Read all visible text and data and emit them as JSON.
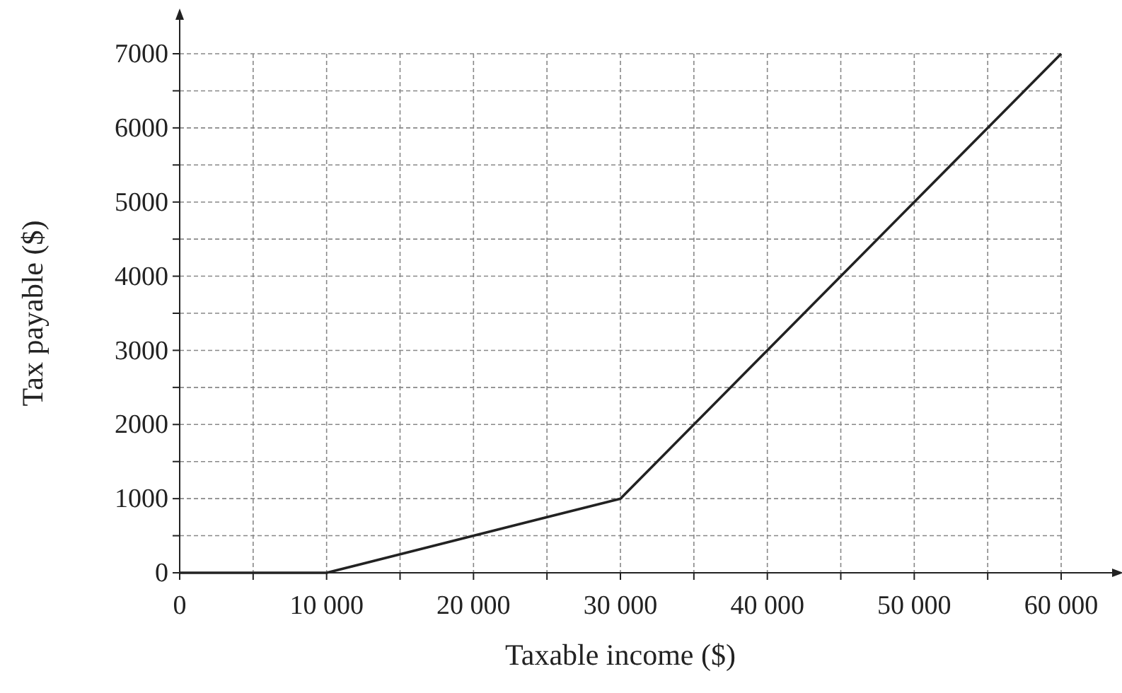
{
  "chart_data": {
    "type": "line",
    "xlabel": "Taxable income ($)",
    "ylabel": "Tax payable ($)",
    "x": [
      0,
      10000,
      30000,
      60000
    ],
    "series": [
      {
        "color": "#222222",
        "values": [
          0,
          0,
          1000,
          7000
        ]
      }
    ],
    "xlim": [
      0,
      60000
    ],
    "ylim": [
      0,
      7000
    ],
    "xticks": [
      0,
      {
        "value": 5000,
        "label": null
      },
      {
        "value": 10000,
        "label": "10 000"
      },
      {
        "value": 15000,
        "label": null
      },
      {
        "value": 20000,
        "label": "20 000"
      },
      {
        "value": 25000,
        "label": null
      },
      {
        "value": 30000,
        "label": "30 000"
      },
      {
        "value": 35000,
        "label": null
      },
      {
        "value": 40000,
        "label": "40 000"
      },
      {
        "value": 45000,
        "label": null
      },
      {
        "value": 50000,
        "label": "50 000"
      },
      {
        "value": 55000,
        "label": null
      },
      {
        "value": 60000,
        "label": "60 000"
      }
    ],
    "yticks": [
      0,
      {
        "value": 500,
        "label": null
      },
      1000,
      {
        "value": 1500,
        "label": null
      },
      2000,
      {
        "value": 2500,
        "label": null
      },
      3000,
      {
        "value": 3500,
        "label": null
      },
      4000,
      {
        "value": 4500,
        "label": null
      },
      5000,
      {
        "value": 5500,
        "label": null
      },
      6000,
      {
        "value": 6500,
        "label": null
      },
      7000
    ],
    "grid": true,
    "marker": "none",
    "line_style": "solid"
  }
}
